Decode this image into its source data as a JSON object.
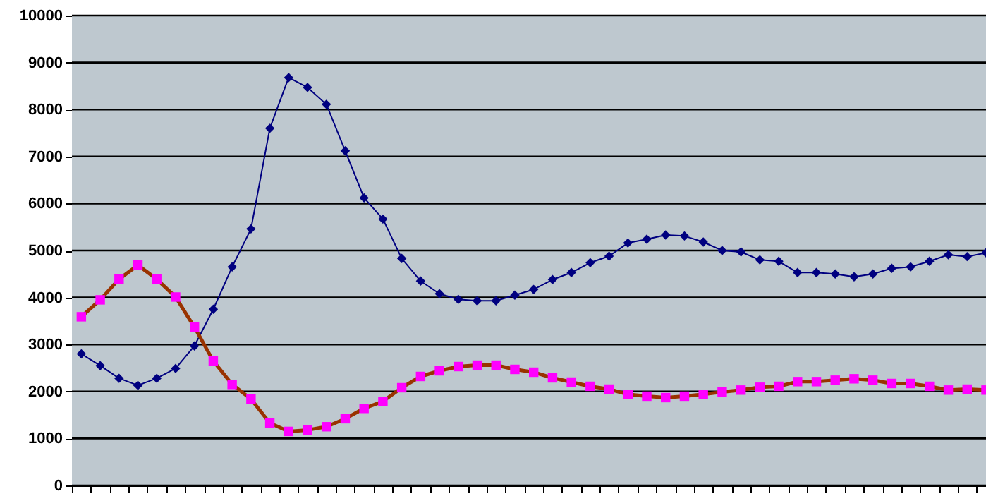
{
  "chart_data": {
    "type": "line",
    "categories": [
      null,
      null,
      null,
      null,
      null,
      null,
      null,
      null,
      null,
      null,
      null,
      null,
      null,
      null,
      null,
      null,
      null,
      null,
      null,
      null,
      null,
      null,
      null,
      null,
      null,
      null,
      null,
      null,
      null,
      null,
      null,
      null,
      null,
      null,
      null,
      null,
      null,
      null,
      null,
      null,
      null,
      null,
      null,
      null,
      null,
      null,
      null,
      null,
      null
    ],
    "series": [
      {
        "color": "#000080",
        "marker": "diamond",
        "values": [
          2800,
          2550,
          2280,
          2130,
          2280,
          2490,
          2970,
          3750,
          4650,
          5460,
          7600,
          8680,
          8470,
          8110,
          7120,
          6120,
          5670,
          4830,
          4350,
          4080,
          3960,
          3930,
          3930,
          4050,
          4170,
          4380,
          4530,
          4740,
          4880,
          5160,
          5240,
          5330,
          5310,
          5180,
          5000,
          4970,
          4800,
          4770,
          4530,
          4530,
          4500,
          4440,
          4500,
          4620,
          4650,
          4770,
          4910,
          4870,
          4950
        ]
      },
      {
        "color": "#ff00ff",
        "marker": "square",
        "values": [
          3590,
          3950,
          4390,
          4690,
          4390,
          4010,
          3370,
          2650,
          2150,
          1840,
          1330,
          1150,
          1180,
          1250,
          1420,
          1640,
          1790,
          2080,
          2320,
          2440,
          2530,
          2560,
          2560,
          2470,
          2410,
          2290,
          2200,
          2110,
          2050,
          1940,
          1900,
          1870,
          1900,
          1940,
          1990,
          2030,
          2090,
          2110,
          2210,
          2210,
          2240,
          2270,
          2240,
          2170,
          2170,
          2110,
          2030,
          2050,
          2030
        ]
      }
    ],
    "ylim": [
      0,
      10000
    ],
    "yticks": [
      0,
      1000,
      2000,
      3000,
      4000,
      5000,
      6000,
      7000,
      8000,
      9000,
      10000
    ],
    "grid": "y",
    "tick_labels": "y"
  }
}
